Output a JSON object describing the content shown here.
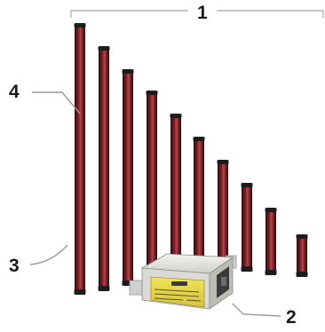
{
  "callouts": {
    "one": "1",
    "two": "2",
    "three": "3",
    "four": "4"
  },
  "colors": {
    "bar_dark": "#2a0d0f",
    "bar_mid": "#7a1f25",
    "bar_highlight": "#b0464d",
    "cap": "#1c1c1c",
    "module_body": "#e9e9e6",
    "module_label": "#e8d84a",
    "leader_line": "#9a9a9a"
  },
  "bar_count": 10
}
